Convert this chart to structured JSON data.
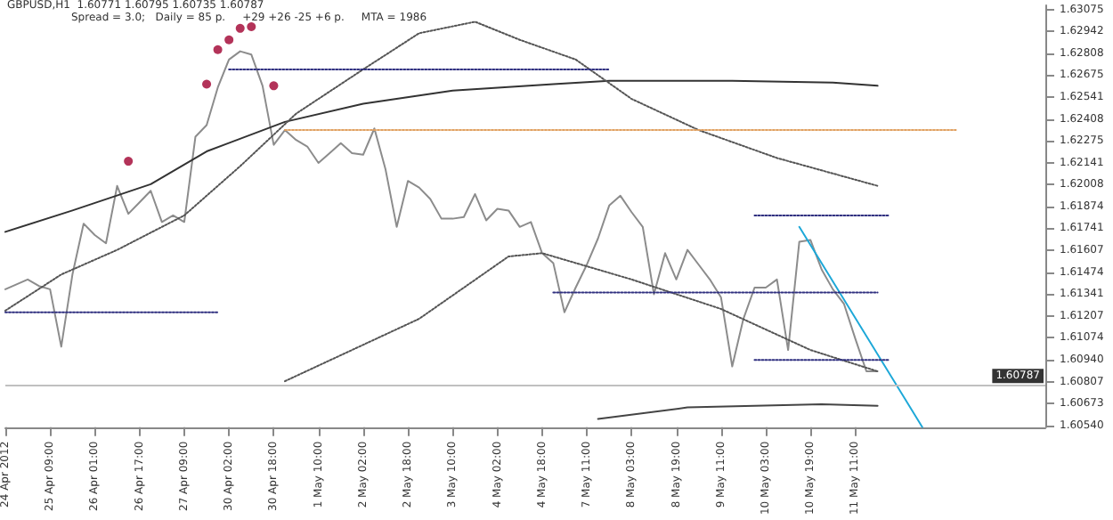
{
  "chart_data": {
    "type": "line",
    "title": "GBPUSD,H1  1.60771 1.60795 1.60735 1.60787",
    "annotations": [
      "Spread = 3.0;   Daily = 85 p.     +29 +26 -25 +6 p.     MTA = 1986"
    ],
    "categories": [
      "24 Apr 2012",
      null,
      null,
      null,
      "25 Apr 09:00",
      null,
      null,
      null,
      "26 Apr 01:00",
      null,
      null,
      null,
      "26 Apr 17:00",
      null,
      null,
      null,
      "27 Apr 09:00",
      null,
      null,
      null,
      "30 Apr 02:00",
      null,
      null,
      null,
      "30 Apr 18:00",
      null,
      null,
      null,
      "1 May 10:00",
      null,
      null,
      null,
      "2 May 02:00",
      null,
      null,
      null,
      "2 May 18:00",
      null,
      null,
      null,
      "3 May 10:00",
      null,
      null,
      null,
      "4 May 02:00",
      null,
      null,
      null,
      "4 May 18:00",
      null,
      null,
      null,
      "7 May 11:00",
      null,
      null,
      null,
      "8 May 03:00",
      null,
      null,
      null,
      "8 May 19:00",
      null,
      null,
      null,
      "9 May 11:00",
      null,
      null,
      null,
      "10 May 03:00",
      null,
      null,
      null,
      "10 May 19:00",
      null,
      null,
      null,
      "11 May 11:00",
      null,
      null,
      null,
      null,
      null,
      null,
      null,
      null,
      null,
      null,
      null,
      null,
      null,
      null,
      null,
      null,
      null
    ],
    "ylim": [
      1.6053,
      1.631
    ],
    "yticks": [
      {
        "value": 1.6054,
        "label": "1.60540"
      },
      {
        "value": 1.60673,
        "label": "1.60673"
      },
      {
        "value": 1.60807,
        "label": "1.60807"
      },
      {
        "value": 1.6094,
        "label": "1.60940"
      },
      {
        "value": 1.61074,
        "label": "1.61074"
      },
      {
        "value": 1.61207,
        "label": "1.61207"
      },
      {
        "value": 1.61341,
        "label": "1.61341"
      },
      {
        "value": 1.61474,
        "label": "1.61474"
      },
      {
        "value": 1.61607,
        "label": "1.61607"
      },
      {
        "value": 1.61741,
        "label": "1.61741"
      },
      {
        "value": 1.61874,
        "label": "1.61874"
      },
      {
        "value": 1.62008,
        "label": "1.62008"
      },
      {
        "value": 1.62141,
        "label": "1.62141"
      },
      {
        "value": 1.62275,
        "label": "1.62275"
      },
      {
        "value": 1.62408,
        "label": "1.62408"
      },
      {
        "value": 1.62541,
        "label": "1.62541"
      },
      {
        "value": 1.62675,
        "label": "1.62675"
      },
      {
        "value": 1.62808,
        "label": "1.62808"
      },
      {
        "value": 1.62942,
        "label": "1.62942"
      },
      {
        "value": 1.63075,
        "label": "1.63075"
      }
    ],
    "grid": false,
    "marker": "none",
    "ref_lines": [
      {
        "axis": "y",
        "value": 1.60787,
        "label": "1.60787",
        "color": "#c0c0c0"
      }
    ],
    "series": [
      {
        "color": "#8c8c8c",
        "line_style": "solid",
        "values": [
          1.6137,
          1.614,
          1.6143,
          1.6139,
          1.6137,
          1.6102,
          1.6146,
          1.6177,
          1.617,
          1.6165,
          1.62,
          1.6183,
          1.619,
          1.6197,
          1.6178,
          1.6182,
          1.6178,
          1.623,
          1.6237,
          1.626,
          1.6277,
          1.6282,
          1.628,
          1.6261,
          1.6225,
          1.6234,
          1.6228,
          1.6224,
          1.6214,
          1.622,
          1.6226,
          1.622,
          1.6219,
          1.6235,
          1.621,
          1.6175,
          1.6203,
          1.6199,
          1.6192,
          1.618,
          1.618,
          1.6181,
          1.6195,
          1.6179,
          1.6186,
          1.6185,
          1.6175,
          1.6178,
          1.6159,
          1.6153,
          1.6123,
          1.6138,
          1.6152,
          1.6168,
          1.6188,
          1.6194,
          1.6184,
          1.6175,
          1.6134,
          1.6159,
          1.6143,
          1.6161,
          1.6152,
          1.6143,
          1.6132,
          1.609,
          1.6119,
          1.6138,
          1.6138,
          1.6143,
          1.61,
          1.6166,
          1.6167,
          1.6149,
          1.6137,
          1.6128,
          1.6107,
          1.6087,
          1.6087,
          null,
          null,
          null,
          null,
          null,
          null,
          null,
          null,
          null,
          null,
          null,
          null,
          null,
          null,
          null
        ]
      },
      {
        "color": "#333333",
        "line_style": "solid",
        "values": [
          1.6172,
          null,
          null,
          null,
          null,
          null,
          1.6185,
          null,
          null,
          null,
          null,
          null,
          null,
          1.6201,
          null,
          null,
          null,
          null,
          1.6221,
          null,
          null,
          null,
          null,
          null,
          null,
          1.6239,
          null,
          null,
          null,
          null,
          null,
          null,
          1.625,
          null,
          null,
          null,
          null,
          null,
          null,
          null,
          1.6258,
          null,
          null,
          null,
          null,
          null,
          null,
          null,
          null,
          1.6262,
          null,
          null,
          null,
          null,
          1.6264,
          null,
          null,
          null,
          null,
          null,
          null,
          null,
          null,
          null,
          null,
          1.6264,
          null,
          null,
          null,
          null,
          null,
          null,
          null,
          null,
          1.6263,
          null,
          null,
          null,
          1.6261,
          null,
          null,
          null,
          null,
          null,
          null,
          null,
          null,
          null,
          null,
          null,
          null,
          null,
          null,
          null
        ]
      },
      {
        "color": "#555555",
        "line_style": "dotted",
        "values": [
          1.6124,
          null,
          null,
          null,
          null,
          1.6146,
          null,
          null,
          null,
          null,
          1.6161,
          null,
          null,
          null,
          null,
          null,
          1.6182,
          null,
          null,
          null,
          null,
          1.6212,
          null,
          null,
          null,
          null,
          1.6244,
          null,
          null,
          null,
          null,
          null,
          1.6271,
          null,
          null,
          null,
          null,
          1.6293,
          null,
          null,
          null,
          null,
          1.63,
          null,
          null,
          null,
          1.6289,
          null,
          null,
          null,
          null,
          1.6277,
          null,
          null,
          null,
          null,
          1.6253,
          null,
          null,
          null,
          null,
          null,
          1.6234,
          null,
          null,
          null,
          null,
          null,
          null,
          1.6217,
          null,
          null,
          null,
          null,
          null,
          null,
          null,
          null,
          1.62,
          null,
          null,
          null,
          null,
          null,
          null,
          null,
          null,
          null,
          null,
          null,
          null,
          null,
          null,
          null
        ]
      },
      {
        "color": "#555555",
        "line_style": "dotted",
        "values": [
          null,
          null,
          null,
          null,
          null,
          null,
          null,
          null,
          null,
          null,
          null,
          null,
          null,
          null,
          null,
          null,
          null,
          null,
          null,
          null,
          null,
          null,
          null,
          null,
          null,
          1.6081,
          null,
          null,
          null,
          null,
          null,
          null,
          null,
          null,
          null,
          null,
          null,
          1.6119,
          null,
          null,
          null,
          null,
          null,
          null,
          null,
          1.6157,
          null,
          null,
          1.6159,
          null,
          null,
          null,
          null,
          null,
          null,
          null,
          1.6143,
          null,
          null,
          null,
          null,
          null,
          null,
          null,
          1.6125,
          null,
          null,
          null,
          null,
          null,
          null,
          null,
          1.61,
          null,
          null,
          null,
          null,
          null,
          1.6087,
          null,
          null,
          null,
          null,
          null,
          null,
          null,
          null,
          null,
          null,
          null,
          null,
          null,
          null,
          null
        ]
      },
      {
        "color": "#444444",
        "line_style": "solid",
        "values": [
          null,
          null,
          null,
          null,
          null,
          null,
          null,
          null,
          null,
          null,
          null,
          null,
          null,
          null,
          null,
          null,
          null,
          null,
          null,
          null,
          null,
          null,
          null,
          null,
          null,
          null,
          null,
          null,
          null,
          null,
          null,
          null,
          null,
          null,
          null,
          null,
          null,
          null,
          null,
          null,
          null,
          null,
          null,
          null,
          null,
          null,
          null,
          null,
          null,
          null,
          null,
          null,
          null,
          1.6058,
          null,
          null,
          null,
          null,
          null,
          null,
          null,
          1.6065,
          null,
          null,
          null,
          null,
          null,
          null,
          null,
          null,
          null,
          null,
          null,
          1.6067,
          null,
          null,
          null,
          null,
          1.6066,
          null,
          null,
          null,
          null,
          null,
          null,
          null,
          null,
          null,
          null,
          null,
          null,
          null,
          null,
          null
        ]
      },
      {
        "color": "#1ea8d8",
        "line_style": "solid",
        "values": [
          null,
          null,
          null,
          null,
          null,
          null,
          null,
          null,
          null,
          null,
          null,
          null,
          null,
          null,
          null,
          null,
          null,
          null,
          null,
          null,
          null,
          null,
          null,
          null,
          null,
          null,
          null,
          null,
          null,
          null,
          null,
          null,
          null,
          null,
          null,
          null,
          null,
          null,
          null,
          null,
          null,
          null,
          null,
          null,
          null,
          null,
          null,
          null,
          null,
          null,
          null,
          null,
          null,
          null,
          null,
          null,
          null,
          null,
          null,
          null,
          null,
          null,
          null,
          null,
          null,
          null,
          null,
          null,
          null,
          null,
          null,
          1.6175,
          null,
          null,
          null,
          null,
          null,
          null,
          null,
          null,
          null,
          null,
          1.6053,
          null,
          null,
          null,
          null,
          null,
          null,
          null,
          null,
          null,
          null,
          null
        ]
      },
      {
        "color": "#303080",
        "line_style": "dotted",
        "values": [
          null,
          null,
          null,
          null,
          null,
          null,
          null,
          null,
          null,
          null,
          null,
          null,
          null,
          null,
          null,
          null,
          null,
          null,
          null,
          null,
          1.6271,
          null,
          null,
          null,
          null,
          null,
          null,
          null,
          null,
          null,
          null,
          null,
          null,
          null,
          null,
          null,
          null,
          null,
          null,
          null,
          null,
          null,
          null,
          null,
          null,
          null,
          null,
          null,
          null,
          null,
          null,
          null,
          null,
          null,
          1.6271,
          null,
          null,
          null,
          null,
          null,
          null,
          null,
          null,
          null,
          null,
          null,
          null,
          null,
          null,
          null,
          null,
          null,
          null,
          null,
          null,
          null,
          null,
          null,
          null,
          null,
          null,
          null,
          null,
          null,
          null,
          null,
          null,
          null,
          null,
          null,
          null,
          null,
          null,
          null
        ]
      },
      {
        "color": "#303080",
        "line_style": "dotted",
        "values": [
          1.6123,
          null,
          null,
          null,
          null,
          null,
          null,
          null,
          null,
          null,
          null,
          null,
          null,
          null,
          null,
          null,
          null,
          null,
          null,
          1.6123,
          null,
          null,
          null,
          null,
          null,
          null,
          null,
          null,
          null,
          null,
          null,
          null,
          null,
          null,
          null,
          null,
          null,
          null,
          null,
          null,
          null,
          null,
          null,
          null,
          null,
          null,
          null,
          null,
          null,
          null,
          null,
          null,
          null,
          null,
          null,
          null,
          null,
          null,
          null,
          null,
          null,
          null,
          null,
          null,
          null,
          null,
          null,
          null,
          null,
          null,
          null,
          null,
          null,
          null,
          null,
          null,
          null,
          null,
          null,
          null,
          null,
          null,
          null,
          null,
          null,
          null,
          null,
          null,
          null,
          null,
          null,
          null,
          null,
          null
        ]
      },
      {
        "color": "#e0a060",
        "line_style": "dotted",
        "values": [
          null,
          null,
          null,
          null,
          null,
          null,
          null,
          null,
          null,
          null,
          null,
          null,
          null,
          null,
          null,
          null,
          null,
          null,
          null,
          null,
          null,
          null,
          null,
          null,
          null,
          1.6234,
          null,
          null,
          null,
          null,
          null,
          null,
          null,
          null,
          null,
          null,
          null,
          null,
          null,
          null,
          null,
          null,
          null,
          null,
          null,
          null,
          null,
          null,
          null,
          null,
          null,
          null,
          null,
          null,
          null,
          null,
          null,
          null,
          null,
          null,
          null,
          null,
          null,
          null,
          null,
          null,
          null,
          null,
          null,
          null,
          null,
          null,
          null,
          null,
          null,
          null,
          null,
          null,
          null,
          null,
          null,
          null,
          null,
          null,
          null,
          1.6234,
          null,
          null,
          null,
          null,
          null,
          null,
          null,
          null
        ]
      },
      {
        "color": "#303080",
        "line_style": "dotted",
        "values": [
          null,
          null,
          null,
          null,
          null,
          null,
          null,
          null,
          null,
          null,
          null,
          null,
          null,
          null,
          null,
          null,
          null,
          null,
          null,
          null,
          null,
          null,
          null,
          null,
          null,
          null,
          null,
          null,
          null,
          null,
          null,
          null,
          null,
          null,
          null,
          null,
          null,
          null,
          null,
          null,
          null,
          null,
          null,
          null,
          null,
          null,
          null,
          null,
          null,
          null,
          null,
          null,
          null,
          null,
          null,
          null,
          null,
          null,
          null,
          null,
          null,
          null,
          null,
          null,
          null,
          null,
          null,
          1.6182,
          null,
          null,
          null,
          null,
          null,
          null,
          null,
          null,
          null,
          null,
          null,
          1.6182,
          null,
          null,
          null,
          null,
          null,
          null,
          null,
          null,
          null,
          null,
          null,
          null,
          null,
          null
        ]
      },
      {
        "color": "#303080",
        "line_style": "dotted",
        "values": [
          null,
          null,
          null,
          null,
          null,
          null,
          null,
          null,
          null,
          null,
          null,
          null,
          null,
          null,
          null,
          null,
          null,
          null,
          null,
          null,
          null,
          null,
          null,
          null,
          null,
          null,
          null,
          null,
          null,
          null,
          null,
          null,
          null,
          null,
          null,
          null,
          null,
          null,
          null,
          null,
          null,
          null,
          null,
          null,
          null,
          null,
          null,
          null,
          null,
          1.6135,
          null,
          null,
          null,
          null,
          null,
          null,
          null,
          null,
          null,
          null,
          null,
          null,
          null,
          null,
          null,
          null,
          null,
          null,
          null,
          null,
          null,
          null,
          null,
          null,
          null,
          null,
          null,
          null,
          1.6135,
          null,
          null,
          null,
          null,
          null,
          null,
          null,
          null,
          null,
          null,
          null,
          null,
          null,
          null,
          null
        ]
      },
      {
        "color": "#303080",
        "line_style": "dotted",
        "values": [
          null,
          null,
          null,
          null,
          null,
          null,
          null,
          null,
          null,
          null,
          null,
          null,
          null,
          null,
          null,
          null,
          null,
          null,
          null,
          null,
          null,
          null,
          null,
          null,
          null,
          null,
          null,
          null,
          null,
          null,
          null,
          null,
          null,
          null,
          null,
          null,
          null,
          null,
          null,
          null,
          null,
          null,
          null,
          null,
          null,
          null,
          null,
          null,
          null,
          null,
          null,
          null,
          null,
          null,
          null,
          null,
          null,
          null,
          null,
          null,
          null,
          null,
          null,
          null,
          null,
          null,
          null,
          1.6094,
          null,
          null,
          null,
          null,
          null,
          null,
          null,
          null,
          null,
          null,
          null,
          1.6094,
          null,
          null,
          null,
          null,
          null,
          null,
          null,
          null,
          null,
          null,
          null,
          null,
          null,
          null
        ]
      },
      {
        "type": "scatter",
        "marker": "circle",
        "color": "#a00030",
        "values": [
          null,
          null,
          null,
          null,
          null,
          null,
          null,
          null,
          null,
          null,
          null,
          1.6215,
          null,
          null,
          null,
          null,
          null,
          null,
          1.6262,
          1.6283,
          1.6289,
          1.6296,
          1.6297,
          null,
          1.6261,
          null,
          null,
          null,
          null,
          null,
          null,
          null,
          null,
          null,
          null,
          null,
          null,
          null,
          null,
          null,
          null,
          null,
          null,
          null,
          null,
          null,
          null,
          null,
          null,
          null,
          null,
          null,
          null,
          null,
          null,
          null,
          null,
          null,
          null,
          null,
          null,
          null,
          null,
          null,
          null,
          null,
          null,
          null,
          null,
          null,
          null,
          null,
          null,
          null,
          null,
          null,
          null,
          null,
          null,
          null,
          null,
          null,
          null,
          null,
          null,
          null,
          null,
          null,
          null,
          null,
          null,
          null,
          null,
          null
        ]
      }
    ]
  }
}
